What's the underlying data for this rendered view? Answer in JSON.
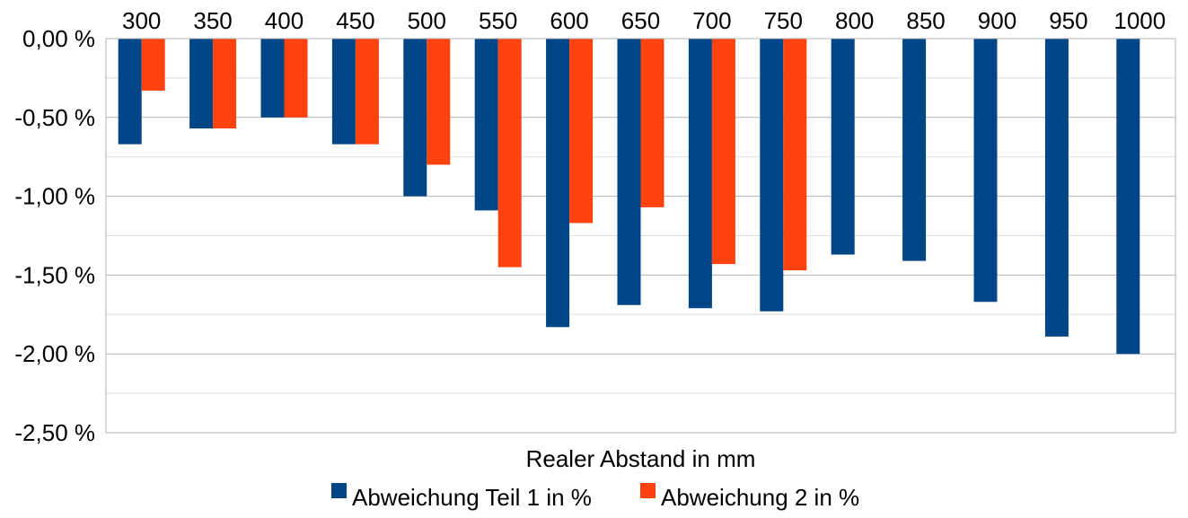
{
  "chart_data": {
    "type": "bar",
    "title": "",
    "xlabel": "Realer Abstand in mm",
    "ylabel": "",
    "categories": [
      "300",
      "350",
      "400",
      "450",
      "500",
      "550",
      "600",
      "650",
      "700",
      "750",
      "800",
      "850",
      "900",
      "950",
      "1000"
    ],
    "series": [
      {
        "name": "Abweichung Teil 1 in %",
        "color": "#004586",
        "values": [
          -0.67,
          -0.57,
          -0.5,
          -0.67,
          -1.0,
          -1.09,
          -1.83,
          -1.69,
          -1.71,
          -1.73,
          -1.37,
          -1.41,
          -1.67,
          -1.89,
          -2.0
        ]
      },
      {
        "name": "Abweichung 2 in %",
        "color": "#ff420e",
        "values": [
          -0.33,
          -0.57,
          -0.5,
          -0.67,
          -0.8,
          -1.45,
          -1.17,
          -1.07,
          -1.43,
          -1.47,
          null,
          null,
          null,
          null,
          null
        ]
      }
    ],
    "ylim": [
      -2.5,
      0
    ],
    "yticks": [
      0,
      -0.5,
      -1.0,
      -1.5,
      -2.0,
      -2.5
    ],
    "ytick_labels": [
      "0,00 %",
      "-0,50 %",
      "-1,00 %",
      "-1,50 %",
      "-2,00 %",
      "-2,50 %"
    ],
    "x_axis_position": "top",
    "grid": true,
    "minor_grid": true,
    "legend_position": "bottom"
  }
}
